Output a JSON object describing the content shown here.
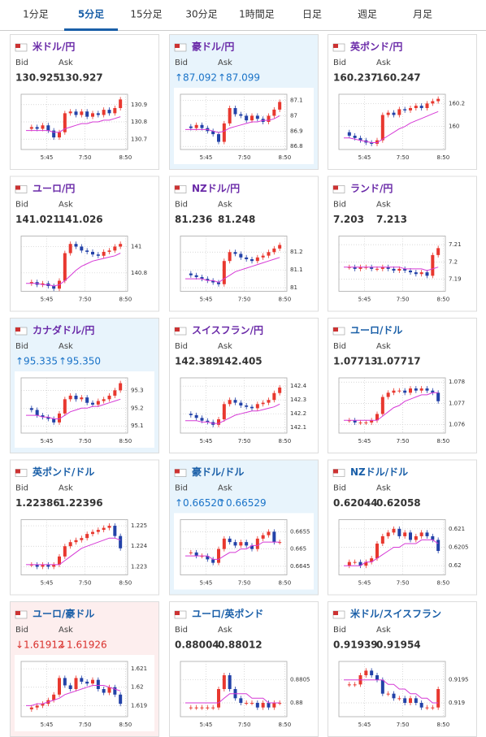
{
  "tabs": {
    "items": [
      "1分足",
      "5分足",
      "15分足",
      "30分足",
      "1時間足",
      "日足",
      "週足",
      "月足"
    ],
    "active": 1,
    "active_color": "#1a5fa8"
  },
  "colors": {
    "up": "#e8382f",
    "down": "#2342a8",
    "ma": "#d63ad6",
    "trend_up": "#1a73c8",
    "trend_down": "#d9302c"
  },
  "panels": [
    {
      "pair": "米ドル/円",
      "title_color": "#6a2aa8",
      "highlight": null,
      "trend": null,
      "labels": [
        "Bid",
        "Ask"
      ],
      "bid": "130.925",
      "ask": "130.927",
      "chart": {
        "type": "candlestick",
        "ylim": [
          130.64,
          130.96
        ],
        "yticks": [
          130.7,
          130.8,
          130.9
        ],
        "x_labels": [
          "5:45",
          "7:50",
          "8:50"
        ],
        "closes": [
          130.76,
          130.77,
          130.76,
          130.78,
          130.75,
          130.71,
          130.74,
          130.85,
          130.86,
          130.84,
          130.86,
          130.83,
          130.85,
          130.84,
          130.87,
          130.85,
          130.88,
          130.93
        ],
        "ma": [
          130.75,
          130.75,
          130.75,
          130.75,
          130.75,
          130.74,
          130.74,
          130.76,
          130.77,
          130.78,
          130.79,
          130.79,
          130.8,
          130.8,
          130.81,
          130.81,
          130.82,
          130.83
        ]
      }
    },
    {
      "pair": "豪ドル/円",
      "title_color": "#6a2aa8",
      "highlight": "#e8f4fc",
      "trend": "up",
      "labels": [
        "Bid",
        "Ask"
      ],
      "bid": "↑87.092",
      "ask": "↑87.099",
      "chart": {
        "type": "candlestick",
        "ylim": [
          86.78,
          87.14
        ],
        "yticks": [
          86.8,
          86.9,
          87,
          87.1
        ],
        "x_labels": [
          "5:45",
          "7:50",
          "8:50"
        ],
        "closes": [
          86.93,
          86.92,
          86.94,
          86.92,
          86.9,
          86.88,
          86.83,
          86.95,
          87.05,
          87.01,
          87.0,
          86.97,
          87.0,
          86.98,
          86.96,
          87.0,
          87.04,
          87.09
        ],
        "ma": [
          86.91,
          86.91,
          86.91,
          86.91,
          86.91,
          86.9,
          86.89,
          86.9,
          86.92,
          86.93,
          86.94,
          86.95,
          86.96,
          86.96,
          86.97,
          86.97,
          86.98,
          87.0
        ]
      }
    },
    {
      "pair": "英ポンド/円",
      "title_color": "#6a2aa8",
      "highlight": null,
      "trend": null,
      "labels": [
        "Bid",
        "Ask"
      ],
      "bid": "160.237",
      "ask": "160.247",
      "chart": {
        "type": "candlestick",
        "ylim": [
          159.8,
          160.28
        ],
        "yticks": [
          160,
          160.2
        ],
        "x_labels": [
          "5:45",
          "7:50",
          "8:50"
        ],
        "closes": [
          159.95,
          159.92,
          159.9,
          159.88,
          159.86,
          159.85,
          159.88,
          160.1,
          160.12,
          160.1,
          160.15,
          160.14,
          160.16,
          160.18,
          160.16,
          160.2,
          160.22,
          160.24
        ],
        "ma": [
          159.9,
          159.9,
          159.89,
          159.88,
          159.87,
          159.86,
          159.86,
          159.89,
          159.92,
          159.95,
          159.98,
          160.0,
          160.03,
          160.05,
          160.07,
          160.09,
          160.11,
          160.13
        ]
      }
    },
    {
      "pair": "ユーロ/円",
      "title_color": "#6a2aa8",
      "highlight": null,
      "trend": null,
      "labels": [
        "Bid",
        "Ask"
      ],
      "bid": "141.021",
      "ask": "141.026",
      "chart": {
        "type": "candlestick",
        "ylim": [
          140.66,
          141.08
        ],
        "yticks": [
          140.8,
          141
        ],
        "x_labels": [
          "5:45",
          "7:50",
          "8:50"
        ],
        "closes": [
          140.72,
          140.73,
          140.71,
          140.72,
          140.7,
          140.68,
          140.74,
          140.95,
          141.02,
          141.0,
          140.97,
          140.96,
          140.94,
          140.93,
          140.96,
          140.97,
          141.0,
          141.02
        ],
        "ma": [
          140.72,
          140.72,
          140.72,
          140.71,
          140.71,
          140.7,
          140.71,
          140.74,
          140.78,
          140.82,
          140.85,
          140.87,
          140.89,
          140.9,
          140.91,
          140.92,
          140.93,
          140.95
        ]
      }
    },
    {
      "pair": "NZドル/円",
      "title_color": "#6a2aa8",
      "highlight": null,
      "trend": null,
      "labels": [
        "Bid",
        "Ask"
      ],
      "bid": "81.236",
      "ask": "81.248",
      "chart": {
        "type": "candlestick",
        "ylim": [
          80.98,
          81.29
        ],
        "yticks": [
          81,
          81.1,
          81.2
        ],
        "x_labels": [
          "5:45",
          "7:50",
          "8:50"
        ],
        "closes": [
          81.08,
          81.07,
          81.06,
          81.05,
          81.04,
          81.03,
          81.02,
          81.15,
          81.2,
          81.19,
          81.17,
          81.16,
          81.15,
          81.17,
          81.18,
          81.2,
          81.22,
          81.24
        ],
        "ma": [
          81.05,
          81.05,
          81.05,
          81.05,
          81.04,
          81.04,
          81.03,
          81.05,
          81.07,
          81.09,
          81.1,
          81.11,
          81.12,
          81.13,
          81.14,
          81.15,
          81.16,
          81.17
        ]
      }
    },
    {
      "pair": "ランド/円",
      "title_color": "#6a2aa8",
      "highlight": null,
      "trend": null,
      "labels": [
        "Bid",
        "Ask"
      ],
      "bid": "7.203",
      "ask": "7.213",
      "chart": {
        "type": "candlestick",
        "ylim": [
          7.183,
          7.215
        ],
        "yticks": [
          7.19,
          7.2,
          7.21
        ],
        "x_labels": [
          "5:45",
          "7:50",
          "8:50"
        ],
        "closes": [
          7.197,
          7.197,
          7.196,
          7.197,
          7.197,
          7.196,
          7.196,
          7.197,
          7.196,
          7.195,
          7.196,
          7.195,
          7.194,
          7.193,
          7.194,
          7.192,
          7.204,
          7.208
        ],
        "ma": [
          7.197,
          7.197,
          7.197,
          7.197,
          7.197,
          7.197,
          7.197,
          7.197,
          7.197,
          7.197,
          7.197,
          7.196,
          7.196,
          7.196,
          7.196,
          7.195,
          7.196,
          7.197
        ]
      }
    },
    {
      "pair": "カナダドル/円",
      "title_color": "#6a2aa8",
      "highlight": "#e8f4fc",
      "trend": "up",
      "labels": [
        "Bid",
        "Ask"
      ],
      "bid": "↑95.335",
      "ask": "↑95.350",
      "chart": {
        "type": "candlestick",
        "ylim": [
          95.06,
          95.37
        ],
        "yticks": [
          95.1,
          95.2,
          95.3
        ],
        "x_labels": [
          "5:45",
          "7:50",
          "8:50"
        ],
        "closes": [
          95.2,
          95.19,
          95.16,
          95.15,
          95.14,
          95.12,
          95.17,
          95.25,
          95.27,
          95.25,
          95.26,
          95.23,
          95.22,
          95.24,
          95.25,
          95.27,
          95.3,
          95.34
        ],
        "ma": [
          95.16,
          95.16,
          95.16,
          95.15,
          95.15,
          95.14,
          95.14,
          95.16,
          95.18,
          95.19,
          95.2,
          95.2,
          95.21,
          95.21,
          95.22,
          95.23,
          95.24,
          95.25
        ]
      }
    },
    {
      "pair": "スイスフラン/円",
      "title_color": "#6a2aa8",
      "highlight": null,
      "trend": null,
      "labels": [
        "Bid",
        "Ask"
      ],
      "bid": "142.389",
      "ask": "142.405",
      "chart": {
        "type": "candlestick",
        "ylim": [
          142.06,
          142.46
        ],
        "yticks": [
          142.1,
          142.2,
          142.3,
          142.4
        ],
        "x_labels": [
          "5:45",
          "7:50",
          "8:50"
        ],
        "closes": [
          142.2,
          142.19,
          142.17,
          142.15,
          142.14,
          142.12,
          142.16,
          142.27,
          142.3,
          142.28,
          142.26,
          142.25,
          142.24,
          142.27,
          142.28,
          142.3,
          142.35,
          142.39
        ],
        "ma": [
          142.15,
          142.15,
          142.15,
          142.14,
          142.14,
          142.13,
          142.13,
          142.15,
          142.17,
          142.19,
          142.2,
          142.21,
          142.22,
          142.22,
          142.23,
          142.24,
          142.25,
          142.27
        ]
      }
    },
    {
      "pair": "ユーロ/ドル",
      "title_color": "#1a5fa8",
      "highlight": null,
      "trend": null,
      "labels": [
        "Bid",
        "Ask"
      ],
      "bid": "1.07713",
      "ask": "1.07717",
      "chart": {
        "type": "candlestick",
        "ylim": [
          1.0756,
          1.0782
        ],
        "yticks": [
          1.076,
          1.077,
          1.078
        ],
        "x_labels": [
          "5:45",
          "7:50",
          "8:50"
        ],
        "closes": [
          1.0762,
          1.0762,
          1.0761,
          1.0761,
          1.0761,
          1.0762,
          1.0765,
          1.0773,
          1.0775,
          1.0776,
          1.0776,
          1.0775,
          1.0777,
          1.0776,
          1.0777,
          1.0776,
          1.0775,
          1.0771
        ],
        "ma": [
          1.0762,
          1.0762,
          1.0762,
          1.0762,
          1.0762,
          1.0762,
          1.0762,
          1.0764,
          1.0766,
          1.0768,
          1.0769,
          1.0771,
          1.0772,
          1.0773,
          1.0774,
          1.0774,
          1.0775,
          1.0775
        ]
      }
    },
    {
      "pair": "英ポンド/ドル",
      "title_color": "#1a5fa8",
      "highlight": null,
      "trend": null,
      "labels": [
        "Bid",
        "Ask"
      ],
      "bid": "1.22386",
      "ask": "1.22396",
      "chart": {
        "type": "candlestick",
        "ylim": [
          1.2226,
          1.2253
        ],
        "yticks": [
          1.223,
          1.224,
          1.225
        ],
        "x_labels": [
          "5:45",
          "7:50",
          "8:50"
        ],
        "closes": [
          1.2231,
          1.2231,
          1.223,
          1.2231,
          1.223,
          1.2231,
          1.2235,
          1.224,
          1.2242,
          1.2243,
          1.2244,
          1.2246,
          1.2247,
          1.2248,
          1.2249,
          1.225,
          1.2245,
          1.2239
        ],
        "ma": [
          1.2231,
          1.2231,
          1.2231,
          1.2231,
          1.2231,
          1.2231,
          1.2231,
          1.2233,
          1.2235,
          1.2237,
          1.2239,
          1.224,
          1.2241,
          1.2242,
          1.2243,
          1.2244,
          1.2244,
          1.2243
        ]
      }
    },
    {
      "pair": "豪ドル/ドル",
      "title_color": "#1a5fa8",
      "highlight": "#e8f4fc",
      "trend": "up",
      "labels": [
        "Bid",
        "Ask"
      ],
      "bid": "↑0.66520",
      "ask": "↑0.66529",
      "chart": {
        "type": "candlestick",
        "ylim": [
          0.66425,
          0.66585
        ],
        "yticks": [
          0.6645,
          0.665,
          0.6655
        ],
        "x_labels": [
          "5:45",
          "7:50",
          "8:50"
        ],
        "closes": [
          0.6649,
          0.6649,
          0.6648,
          0.6648,
          0.6647,
          0.6646,
          0.665,
          0.6653,
          0.6652,
          0.6651,
          0.6652,
          0.6651,
          0.665,
          0.6653,
          0.6654,
          0.6655,
          0.6652,
          0.6652
        ],
        "ma": [
          0.6648,
          0.6648,
          0.6648,
          0.6648,
          0.6648,
          0.6647,
          0.6647,
          0.6648,
          0.6649,
          0.6649,
          0.665,
          0.665,
          0.6651,
          0.6651,
          0.6652,
          0.6652,
          0.6652,
          0.6652
        ]
      }
    },
    {
      "pair": "NZドル/ドル",
      "title_color": "#1a5fa8",
      "highlight": null,
      "trend": null,
      "labels": [
        "Bid",
        "Ask"
      ],
      "bid": "0.62044",
      "ask": "0.62058",
      "chart": {
        "type": "candlestick",
        "ylim": [
          0.61975,
          0.62125
        ],
        "yticks": [
          0.62,
          0.6205,
          0.621
        ],
        "x_labels": [
          "5:45",
          "7:50",
          "8:50"
        ],
        "closes": [
          0.62,
          0.6201,
          0.6201,
          0.62,
          0.6201,
          0.6202,
          0.6206,
          0.6208,
          0.6209,
          0.621,
          0.6208,
          0.6209,
          0.6207,
          0.6208,
          0.6209,
          0.6208,
          0.6207,
          0.6204
        ],
        "ma": [
          0.62,
          0.62,
          0.62,
          0.62,
          0.6201,
          0.6201,
          0.6202,
          0.6203,
          0.6204,
          0.6205,
          0.6205,
          0.6206,
          0.6206,
          0.6206,
          0.6207,
          0.6207,
          0.6207,
          0.6206
        ]
      }
    },
    {
      "pair": "ユーロ/豪ドル",
      "title_color": "#1a5fa8",
      "highlight": "#fdeeee",
      "trend": "down",
      "labels": [
        "Bid",
        "Ask"
      ],
      "bid": "↓1.61912",
      "ask": "↓1.61926",
      "chart": {
        "type": "candlestick",
        "ylim": [
          1.6184,
          1.6214
        ],
        "yticks": [
          1.619,
          1.62,
          1.621
        ],
        "x_labels": [
          "5:45",
          "7:50",
          "8:50"
        ],
        "closes": [
          1.6188,
          1.6189,
          1.619,
          1.6191,
          1.6193,
          1.6196,
          1.6205,
          1.6201,
          1.6199,
          1.6205,
          1.6203,
          1.6202,
          1.6204,
          1.6199,
          1.6197,
          1.62,
          1.6196,
          1.6191
        ],
        "ma": [
          1.619,
          1.619,
          1.6191,
          1.6191,
          1.6192,
          1.6193,
          1.6194,
          1.6196,
          1.6197,
          1.6198,
          1.6199,
          1.62,
          1.6201,
          1.6201,
          1.6201,
          1.62,
          1.6199,
          1.6198
        ]
      }
    },
    {
      "pair": "ユーロ/英ポンド",
      "title_color": "#1a5fa8",
      "highlight": null,
      "trend": null,
      "labels": [
        "Bid",
        "Ask"
      ],
      "bid": "0.88004",
      "ask": "0.88012",
      "chart": {
        "type": "candlestick",
        "ylim": [
          0.8797,
          0.8809
        ],
        "yticks": [
          0.88,
          0.8805
        ],
        "x_labels": [
          "5:45",
          "7:50",
          "8:50"
        ],
        "closes": [
          0.8799,
          0.8799,
          0.8799,
          0.8799,
          0.8799,
          0.8799,
          0.8803,
          0.8806,
          0.8803,
          0.8801,
          0.88,
          0.88,
          0.88,
          0.8799,
          0.88,
          0.8799,
          0.88,
          0.88
        ],
        "ma": [
          0.88,
          0.88,
          0.88,
          0.88,
          0.88,
          0.88,
          0.88,
          0.8801,
          0.8802,
          0.8802,
          0.8802,
          0.8802,
          0.8801,
          0.8801,
          0.8801,
          0.88,
          0.88,
          0.88
        ]
      }
    },
    {
      "pair": "米ドル/スイスフラン",
      "title_color": "#1a5fa8",
      "highlight": null,
      "trend": null,
      "labels": [
        "Bid",
        "Ask"
      ],
      "bid": "0.91939",
      "ask": "0.91954",
      "chart": {
        "type": "candlestick",
        "ylim": [
          0.9187,
          0.9199
        ],
        "yticks": [
          0.919,
          0.9195
        ],
        "x_labels": [
          "5:45",
          "7:50",
          "8:50"
        ],
        "closes": [
          0.9194,
          0.9194,
          0.9194,
          0.9196,
          0.9197,
          0.9196,
          0.9195,
          0.9192,
          0.9192,
          0.9191,
          0.9191,
          0.919,
          0.9191,
          0.919,
          0.9189,
          0.9189,
          0.9189,
          0.9193
        ],
        "ma": [
          0.9195,
          0.9195,
          0.9195,
          0.9195,
          0.9195,
          0.9195,
          0.9195,
          0.9195,
          0.9194,
          0.9194,
          0.9193,
          0.9193,
          0.9192,
          0.9192,
          0.9191,
          0.9191,
          0.919,
          0.919
        ]
      }
    }
  ]
}
